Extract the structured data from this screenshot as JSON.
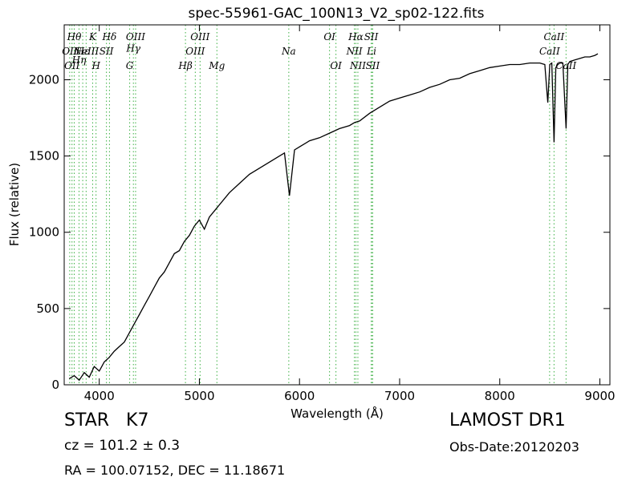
{
  "chart_data": {
    "type": "line",
    "title": "spec-55961-GAC_100N13_V2_sp02-122.fits",
    "xlabel": "Wavelength (Å)",
    "ylabel": "Flux (relative)",
    "xlim": [
      3650,
      9100
    ],
    "ylim": [
      0,
      2360
    ],
    "xticks": [
      4000,
      5000,
      6000,
      7000,
      8000,
      9000
    ],
    "yticks": [
      0,
      500,
      1000,
      1500,
      2000
    ],
    "grid": false,
    "colors": {
      "spectrum": "#000000",
      "line_marker": "#3cb043"
    },
    "series": [
      {
        "values_x": [
          3700,
          3750,
          3800,
          3850,
          3900,
          3950,
          4000,
          4050,
          4100,
          4150,
          4200,
          4250,
          4300,
          4350,
          4400,
          4450,
          4500,
          4550,
          4600,
          4650,
          4700,
          4750,
          4800,
          4850,
          4900,
          4950,
          5000,
          5050,
          5100,
          5150,
          5200,
          5300,
          5400,
          5500,
          5600,
          5700,
          5800,
          5850,
          5900,
          5950,
          6000,
          6100,
          6200,
          6300,
          6400,
          6500,
          6550,
          6600,
          6700,
          6800,
          6900,
          7000,
          7100,
          7200,
          7300,
          7400,
          7500,
          7600,
          7700,
          7800,
          7900,
          8000,
          8100,
          8200,
          8300,
          8400,
          8450,
          8480,
          8500,
          8520,
          8542,
          8560,
          8580,
          8600,
          8630,
          8662,
          8680,
          8700,
          8750,
          8800,
          8850,
          8900,
          8950,
          8980
        ],
        "values_y": [
          40,
          60,
          30,
          80,
          50,
          120,
          90,
          150,
          180,
          220,
          250,
          280,
          340,
          400,
          460,
          520,
          580,
          640,
          700,
          740,
          800,
          860,
          880,
          940,
          980,
          1040,
          1080,
          1020,
          1100,
          1140,
          1180,
          1260,
          1320,
          1380,
          1420,
          1460,
          1500,
          1520,
          1240,
          1540,
          1560,
          1600,
          1620,
          1650,
          1680,
          1700,
          1720,
          1730,
          1780,
          1820,
          1860,
          1880,
          1900,
          1920,
          1950,
          1970,
          2000,
          2010,
          2040,
          2060,
          2080,
          2090,
          2100,
          2100,
          2110,
          2110,
          2100,
          1850,
          2100,
          2110,
          1590,
          2080,
          2100,
          2110,
          2110,
          1680,
          2100,
          2120,
          2130,
          2140,
          2150,
          2150,
          2160,
          2170
        ]
      }
    ],
    "lines": [
      {
        "wl": 3705,
        "label": "OII",
        "row": 1
      },
      {
        "wl": 3728,
        "label": "OII",
        "row": 2
      },
      {
        "wl": 3750,
        "label": "Hθ",
        "row": 0
      },
      {
        "wl": 3798,
        "label": "Hη",
        "row": 1.6
      },
      {
        "wl": 3835,
        "label": "Hε",
        "row": 1
      },
      {
        "wl": 3869,
        "label": "NeIII",
        "row": 1
      },
      {
        "wl": 3934,
        "label": "K",
        "row": 0
      },
      {
        "wl": 3968,
        "label": "H",
        "row": 2
      },
      {
        "wl": 4072,
        "label": "SII",
        "row": 1
      },
      {
        "wl": 4102,
        "label": "Hδ",
        "row": 0
      },
      {
        "wl": 4304,
        "label": "G",
        "row": 2
      },
      {
        "wl": 4341,
        "label": "Hγ",
        "row": 0.8
      },
      {
        "wl": 4363,
        "label": "OIII",
        "row": 0
      },
      {
        "wl": 4861,
        "label": "Hβ",
        "row": 2
      },
      {
        "wl": 4959,
        "label": "OIII",
        "row": 1
      },
      {
        "wl": 5007,
        "label": "OIII",
        "row": 0
      },
      {
        "wl": 5175,
        "label": "Mg",
        "row": 2
      },
      {
        "wl": 5893,
        "label": "Na",
        "row": 1
      },
      {
        "wl": 6300,
        "label": "OI",
        "row": 0
      },
      {
        "wl": 6364,
        "label": "OI",
        "row": 2
      },
      {
        "wl": 6548,
        "label": "NII",
        "row": 1
      },
      {
        "wl": 6563,
        "label": "Hα",
        "row": 0
      },
      {
        "wl": 6583,
        "label": "NII",
        "row": 2
      },
      {
        "wl": 6716,
        "label": "SII",
        "row": 0
      },
      {
        "wl": 6720,
        "label": "Li",
        "row": 1
      },
      {
        "wl": 6731,
        "label": "SII",
        "row": 2
      },
      {
        "wl": 8498,
        "label": "CaII",
        "row": 1
      },
      {
        "wl": 8542,
        "label": "CaII",
        "row": 0
      },
      {
        "wl": 8662,
        "label": "CaII",
        "row": 2
      }
    ]
  },
  "footer": {
    "object_type": "STAR   K7",
    "redshift": "cz = 101.2 ± 0.3",
    "coords": "RA = 100.07152, DEC = 11.18671",
    "survey": "LAMOST DR1",
    "obs_date": "Obs-Date:20120203"
  }
}
